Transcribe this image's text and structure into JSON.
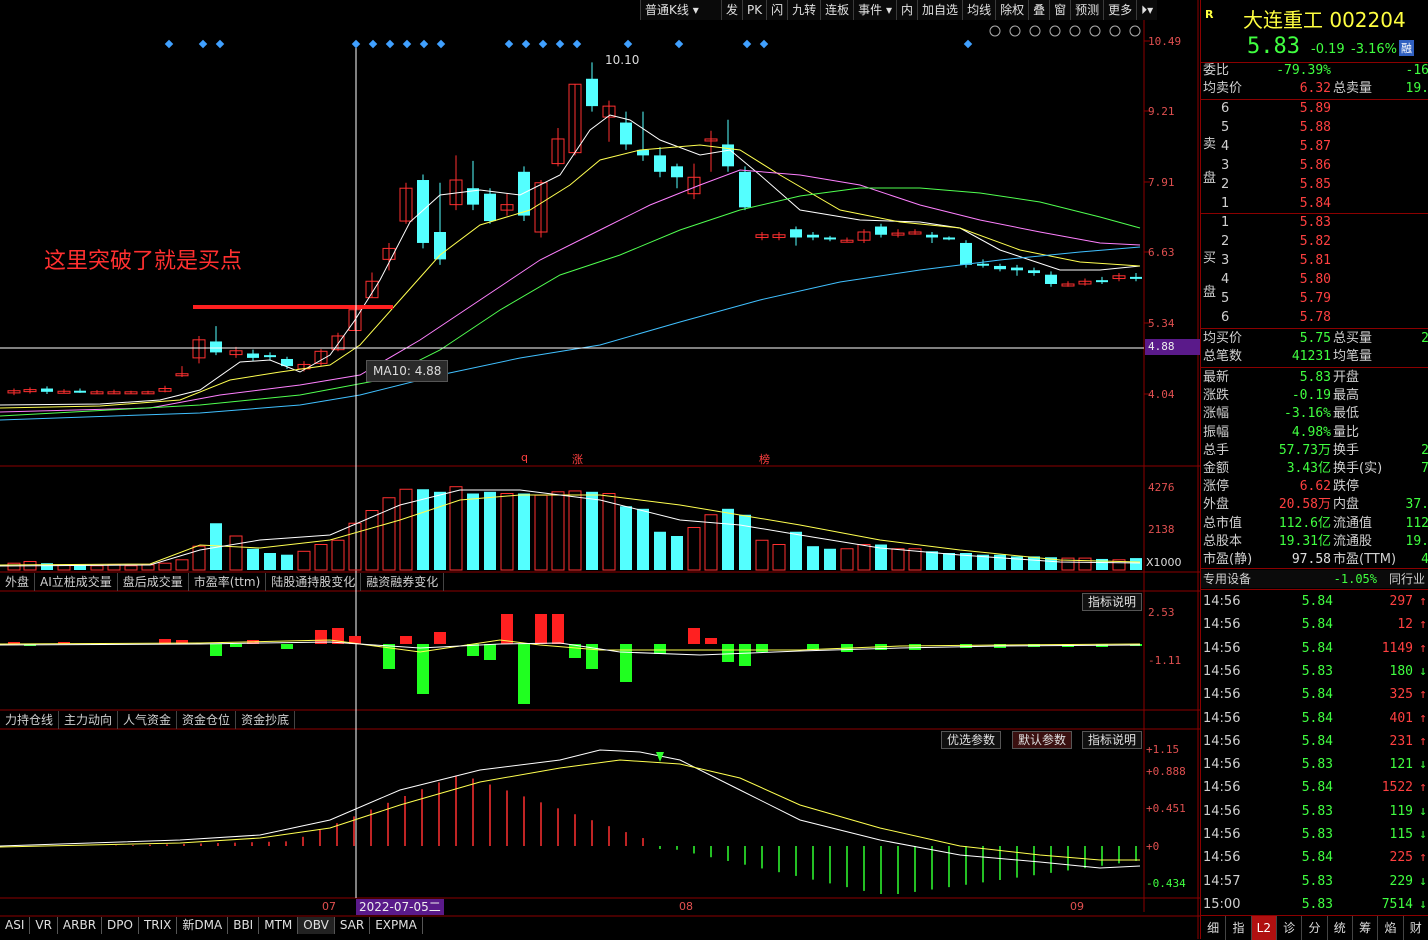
{
  "toolbar": {
    "kline_type": "普通K线",
    "items": [
      "发",
      "PK",
      "闪",
      "九转",
      "连板",
      "事件",
      "内",
      "加自选",
      "均线",
      "除权",
      "叠",
      "窗",
      "预测",
      "更多"
    ]
  },
  "annotation": {
    "text": "这里突破了就是买点"
  },
  "ma_tooltip": "MA10: 4.88",
  "peak_label": "10.10",
  "price_axis": [
    "10.49",
    "9.21",
    "7.91",
    "6.63",
    "5.34",
    "4.88",
    "4.04"
  ],
  "volume_axis": [
    "4276",
    "2138",
    "X1000"
  ],
  "ind1_axis": [
    "2.53",
    "-1.11"
  ],
  "ind2_axis": [
    "+1.15",
    "+0.888",
    "+0.451",
    "+0",
    "-0.434"
  ],
  "event_markers": [
    "q",
    "涨",
    "榜"
  ],
  "x_axis": {
    "labels": [
      "07",
      "08",
      "09"
    ],
    "cursor_date": "2022-07-05二"
  },
  "tabs_row1": [
    "外盘",
    "AI立桩成交量",
    "盘后成交量",
    "市盈率(ttm)",
    "陆股通持股变化",
    "融资融券变化"
  ],
  "tabs_row2": [
    "力持仓线",
    "主力动向",
    "人气资金",
    "资金仓位",
    "资金抄底"
  ],
  "buttons": {
    "ind_explain": "指标说明",
    "opt_params": "优选参数",
    "default_params": "默认参数"
  },
  "bottom_tabs": [
    "ASI",
    "VR",
    "ARBR",
    "DPO",
    "TRIX",
    "新DMA",
    "BBI",
    "MTM",
    "OBV",
    "SAR",
    "EXPMA"
  ],
  "stock": {
    "badge": "R",
    "name": "大连重工",
    "code": "002204",
    "price": "5.83",
    "change": "-0.19",
    "change_pct": "-3.16%",
    "tag": "融"
  },
  "order_stats": {
    "weibi_label": "委比",
    "weibi": "-79.39%",
    "weicha": "-16",
    "avg_sell_label": "均卖价",
    "avg_sell": "6.32",
    "total_sell_label": "总卖量",
    "total_sell": "19.",
    "sell_side": "卖盘",
    "buy_side": "买盘",
    "sells": [
      {
        "lv": "6",
        "p": "5.89"
      },
      {
        "lv": "5",
        "p": "5.88"
      },
      {
        "lv": "4",
        "p": "5.87"
      },
      {
        "lv": "3",
        "p": "5.86"
      },
      {
        "lv": "2",
        "p": "5.85"
      },
      {
        "lv": "1",
        "p": "5.84"
      }
    ],
    "buys": [
      {
        "lv": "1",
        "p": "5.83"
      },
      {
        "lv": "2",
        "p": "5.82"
      },
      {
        "lv": "3",
        "p": "5.81"
      },
      {
        "lv": "4",
        "p": "5.80"
      },
      {
        "lv": "5",
        "p": "5.79"
      },
      {
        "lv": "6",
        "p": "5.78"
      }
    ],
    "avg_buy_label": "均买价",
    "avg_buy": "5.75",
    "total_buy_label": "总买量",
    "total_buy": "2",
    "total_count_label": "总笔数",
    "total_count": "41231",
    "avg_count_label": "均笔量"
  },
  "quote": [
    {
      "l": "最新",
      "v": "5.83",
      "c": "green",
      "l2": "开盘",
      "v2": ""
    },
    {
      "l": "涨跌",
      "v": "-0.19",
      "c": "green",
      "l2": "最高",
      "v2": ""
    },
    {
      "l": "涨幅",
      "v": "-3.16%",
      "c": "green",
      "l2": "最低",
      "v2": ""
    },
    {
      "l": "振幅",
      "v": "4.98%",
      "c": "green",
      "l2": "量比",
      "v2": ""
    },
    {
      "l": "总手",
      "v": "57.73万",
      "c": "green",
      "l2": "换手",
      "v2": "2"
    },
    {
      "l": "金额",
      "v": "3.43亿",
      "c": "green",
      "l2": "换手(实)",
      "v2": "7"
    },
    {
      "l": "涨停",
      "v": "6.62",
      "c": "red",
      "l2": "跌停",
      "v2": ""
    },
    {
      "l": "外盘",
      "v": "20.58万",
      "c": "red",
      "l2": "内盘",
      "v2": "37."
    },
    {
      "l": "总市值",
      "v": "112.6亿",
      "c": "green",
      "l2": "流通值",
      "v2": "112"
    },
    {
      "l": "总股本",
      "v": "19.31亿",
      "c": "green",
      "l2": "流通股",
      "v2": "19."
    },
    {
      "l": "市盈(静)",
      "v": "97.58",
      "c": "white",
      "l2": "市盈(TTM)",
      "v2": "4"
    }
  ],
  "sector": {
    "label": "专用设备",
    "pct": "-1.05%",
    "peer": "同行业"
  },
  "ticks": [
    {
      "t": "14:56",
      "p": "5.84",
      "v": "297",
      "d": "up"
    },
    {
      "t": "14:56",
      "p": "5.84",
      "v": "12",
      "d": "up"
    },
    {
      "t": "14:56",
      "p": "5.84",
      "v": "1149",
      "d": "up"
    },
    {
      "t": "14:56",
      "p": "5.83",
      "v": "180",
      "d": "down"
    },
    {
      "t": "14:56",
      "p": "5.84",
      "v": "325",
      "d": "up"
    },
    {
      "t": "14:56",
      "p": "5.84",
      "v": "401",
      "d": "up"
    },
    {
      "t": "14:56",
      "p": "5.84",
      "v": "231",
      "d": "up"
    },
    {
      "t": "14:56",
      "p": "5.83",
      "v": "121",
      "d": "down"
    },
    {
      "t": "14:56",
      "p": "5.84",
      "v": "1522",
      "d": "up"
    },
    {
      "t": "14:56",
      "p": "5.83",
      "v": "119",
      "d": "down"
    },
    {
      "t": "14:56",
      "p": "5.83",
      "v": "115",
      "d": "down"
    },
    {
      "t": "14:56",
      "p": "5.84",
      "v": "225",
      "d": "up"
    },
    {
      "t": "14:57",
      "p": "5.83",
      "v": "229",
      "d": "down"
    },
    {
      "t": "15:00",
      "p": "5.83",
      "v": "7514",
      "d": "down"
    }
  ],
  "rp_bottom_tabs": [
    "细",
    "指",
    "L2",
    "诊",
    "分",
    "统",
    "筹",
    "焰",
    "财"
  ],
  "colors": {
    "up": "#ff3030",
    "down": "#54ffff",
    "bg": "#000000",
    "ma5": "#ffffff",
    "ma10": "#ffff50",
    "ma20": "#ff80ff",
    "ma30": "#50ff50",
    "ma60": "#40c0ff"
  }
}
